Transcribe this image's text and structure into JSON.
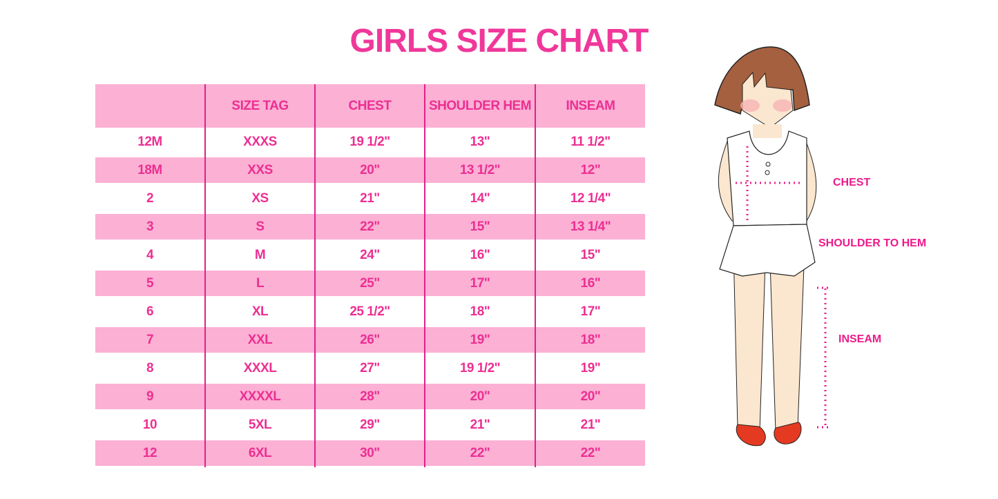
{
  "title": "GIRLS SIZE CHART",
  "colors": {
    "accent": "#ec2f92",
    "stripe": "#fbb0d4"
  },
  "table": {
    "headers": [
      "",
      "SIZE TAG",
      "CHEST",
      "SHOULDER HEM",
      "INSEAM"
    ],
    "rows": [
      [
        "12M",
        "XXXS",
        "19 1/2\"",
        "13\"",
        "11 1/2\""
      ],
      [
        "18M",
        "XXS",
        "20\"",
        "13 1/2\"",
        "12\""
      ],
      [
        "2",
        "XS",
        "21\"",
        "14\"",
        "12 1/4\""
      ],
      [
        "3",
        "S",
        "22\"",
        "15\"",
        "13 1/4\""
      ],
      [
        "4",
        "M",
        "24\"",
        "16\"",
        "15\""
      ],
      [
        "5",
        "L",
        "25\"",
        "17\"",
        "16\""
      ],
      [
        "6",
        "XL",
        "25 1/2\"",
        "18\"",
        "17\""
      ],
      [
        "7",
        "XXL",
        "26\"",
        "19\"",
        "18\""
      ],
      [
        "8",
        "XXXL",
        "27\"",
        "19 1/2\"",
        "19\""
      ],
      [
        "9",
        "XXXXL",
        "28\"",
        "20\"",
        "20\""
      ],
      [
        "10",
        "5XL",
        "29\"",
        "21\"",
        "21\""
      ],
      [
        "12",
        "6XL",
        "30\"",
        "22\"",
        "22\""
      ]
    ]
  },
  "illustration": {
    "labels": {
      "chest": "CHEST",
      "shoulder_to_hem": "SHOULDER TO HEM",
      "inseam": "INSEAM"
    }
  }
}
